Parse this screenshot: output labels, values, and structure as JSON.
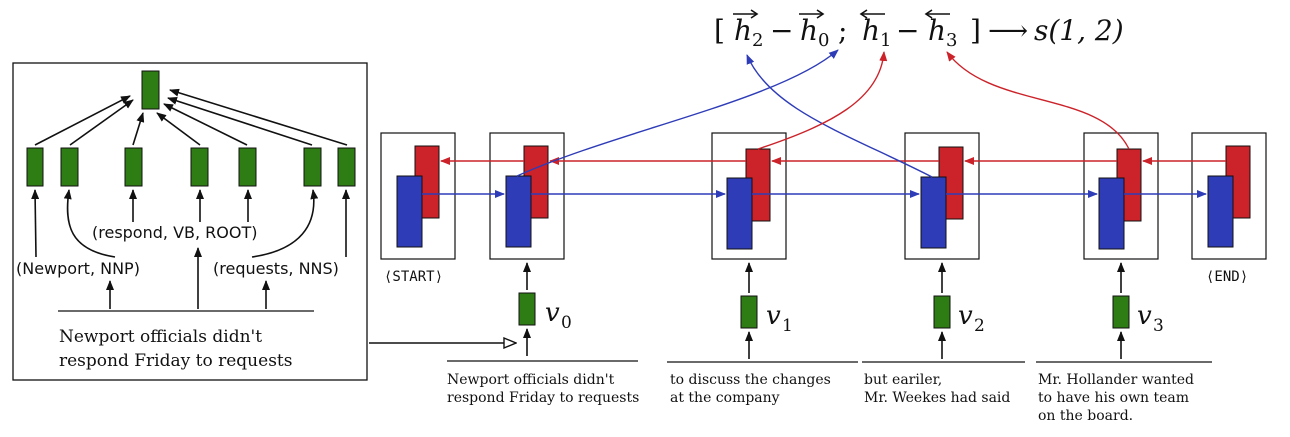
{
  "colors": {
    "green": "#2e7d14",
    "red": "#cc2229",
    "blue": "#2e3cb8",
    "ink": "#111111"
  },
  "formula": {
    "open": "[",
    "h2": "h",
    "sub2": "2",
    "minus1": "−",
    "h0": "h",
    "sub0": "0",
    "sep": ";",
    "h1": "h",
    "sub1": "1",
    "minus2": "−",
    "h3": "h",
    "sub3": "3",
    "close": "]",
    "arrow": "⟶",
    "score": "s(1, 2)"
  },
  "tree_panel": {
    "labels": {
      "newport": "(Newport, NNP)",
      "respond": "(respond, VB, ROOT)",
      "requests": "(requests, NNS)"
    },
    "sentence_line1": "Newport  officials didn't",
    "sentence_line2": "respond Friday to requests"
  },
  "sequence": {
    "start_label": "⟨START⟩",
    "end_label": "⟨END⟩",
    "nodes": [
      {
        "v": "v",
        "sub": "0",
        "text_lines": [
          "Newport  officials didn't",
          "respond Friday to requests"
        ]
      },
      {
        "v": "v",
        "sub": "1",
        "text_lines": [
          "to discuss the changes",
          "at the company"
        ]
      },
      {
        "v": "v",
        "sub": "2",
        "text_lines": [
          "but eariler,",
          "Mr. Weekes had said"
        ]
      },
      {
        "v": "v",
        "sub": "3",
        "text_lines": [
          "Mr. Hollander wanted",
          "to have his own team",
          "on the board."
        ]
      }
    ]
  }
}
